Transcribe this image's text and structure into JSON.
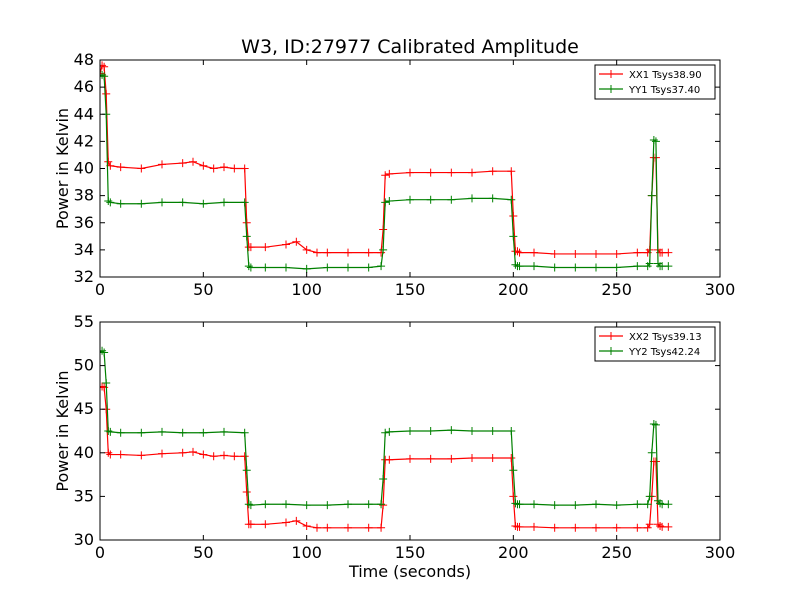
{
  "title": "W3, ID:27977 Calibrated Amplitude",
  "chart_data": [
    {
      "type": "line",
      "title": "W3, ID:27977 Calibrated Amplitude",
      "xlabel": "",
      "ylabel": "Power in Kelvin",
      "xlim": [
        0,
        300
      ],
      "ylim": [
        32,
        48
      ],
      "xticks": [
        "0",
        "50",
        "100",
        "150",
        "200",
        "250",
        "300"
      ],
      "yticks": [
        "32",
        "34",
        "36",
        "38",
        "40",
        "42",
        "44",
        "46",
        "48"
      ],
      "grid": false,
      "legend_position": "top-right",
      "series": [
        {
          "name": "XX1 Tsys38.90",
          "color": "#ff0000",
          "x": [
            0,
            1,
            2,
            3,
            4,
            5,
            10,
            20,
            30,
            40,
            45,
            50,
            55,
            60,
            65,
            70,
            71,
            72,
            73,
            80,
            90,
            95,
            100,
            105,
            110,
            120,
            130,
            136,
            137,
            138,
            140,
            150,
            160,
            170,
            180,
            190,
            199,
            200,
            201,
            202,
            203,
            210,
            220,
            230,
            240,
            250,
            260,
            265,
            266,
            267,
            268,
            269,
            270,
            271,
            272,
            275
          ],
          "y": [
            47.0,
            47.6,
            47.5,
            45.5,
            40.5,
            40.2,
            40.1,
            40.0,
            40.3,
            40.4,
            40.5,
            40.2,
            40.0,
            40.1,
            40.0,
            40.0,
            36.0,
            34.2,
            34.2,
            34.2,
            34.4,
            34.6,
            34.0,
            33.8,
            33.8,
            33.8,
            33.8,
            33.8,
            35.5,
            39.5,
            39.6,
            39.7,
            39.7,
            39.7,
            39.7,
            39.8,
            39.8,
            36.5,
            33.9,
            33.9,
            33.8,
            33.8,
            33.7,
            33.7,
            33.7,
            33.7,
            33.8,
            33.8,
            34.0,
            38.0,
            40.8,
            40.8,
            34.0,
            33.8,
            33.8,
            33.8
          ]
        },
        {
          "name": "YY1 Tsys37.40",
          "color": "#008000",
          "x": [
            0,
            1,
            2,
            3,
            4,
            5,
            10,
            20,
            30,
            40,
            50,
            60,
            70,
            71,
            72,
            73,
            80,
            90,
            100,
            110,
            120,
            130,
            136,
            137,
            138,
            140,
            150,
            160,
            170,
            180,
            190,
            199,
            200,
            201,
            202,
            203,
            210,
            220,
            230,
            240,
            250,
            260,
            265,
            266,
            267,
            268,
            269,
            270,
            271,
            272,
            275
          ],
          "y": [
            46.8,
            46.9,
            46.8,
            44.0,
            37.6,
            37.5,
            37.4,
            37.4,
            37.5,
            37.5,
            37.4,
            37.5,
            37.5,
            35.0,
            32.8,
            32.7,
            32.7,
            32.7,
            32.6,
            32.7,
            32.7,
            32.7,
            32.8,
            34.0,
            37.5,
            37.6,
            37.7,
            37.7,
            37.7,
            37.8,
            37.8,
            37.7,
            35.0,
            32.9,
            32.8,
            32.8,
            32.8,
            32.7,
            32.7,
            32.7,
            32.7,
            32.8,
            32.8,
            33.0,
            38.0,
            42.1,
            42.0,
            33.0,
            32.8,
            32.8,
            32.8
          ]
        }
      ]
    },
    {
      "type": "line",
      "title": "",
      "xlabel": "Time (seconds)",
      "ylabel": "Power in Kelvin",
      "xlim": [
        0,
        300
      ],
      "ylim": [
        30,
        55
      ],
      "xticks": [
        "0",
        "50",
        "100",
        "150",
        "200",
        "250",
        "300"
      ],
      "yticks": [
        "30",
        "35",
        "40",
        "45",
        "50",
        "55"
      ],
      "grid": false,
      "legend_position": "top-right",
      "series": [
        {
          "name": "XX2 Tsys39.13",
          "color": "#ff0000",
          "x": [
            0,
            1,
            2,
            3,
            4,
            5,
            10,
            20,
            30,
            40,
            45,
            50,
            55,
            60,
            65,
            70,
            71,
            72,
            73,
            80,
            90,
            95,
            100,
            105,
            110,
            120,
            130,
            136,
            137,
            138,
            140,
            150,
            160,
            170,
            180,
            190,
            199,
            200,
            201,
            202,
            203,
            210,
            220,
            230,
            240,
            250,
            260,
            265,
            266,
            267,
            268,
            269,
            270,
            271,
            272,
            275
          ],
          "y": [
            47.5,
            47.6,
            47.5,
            45.0,
            40.0,
            39.8,
            39.8,
            39.7,
            39.9,
            40.0,
            40.1,
            39.8,
            39.6,
            39.7,
            39.6,
            39.6,
            35.5,
            31.8,
            31.8,
            31.8,
            32.0,
            32.2,
            31.6,
            31.4,
            31.4,
            31.4,
            31.4,
            31.4,
            34.0,
            39.2,
            39.2,
            39.3,
            39.3,
            39.3,
            39.4,
            39.4,
            39.4,
            35.0,
            31.6,
            31.5,
            31.5,
            31.5,
            31.4,
            31.4,
            31.4,
            31.4,
            31.4,
            31.4,
            31.8,
            35.0,
            39.0,
            39.0,
            31.8,
            31.6,
            31.5,
            31.5
          ]
        },
        {
          "name": "YY2 Tsys42.24",
          "color": "#008000",
          "x": [
            0,
            1,
            2,
            3,
            4,
            5,
            10,
            20,
            30,
            40,
            50,
            60,
            70,
            71,
            72,
            73,
            80,
            90,
            100,
            110,
            120,
            130,
            136,
            137,
            138,
            140,
            150,
            160,
            170,
            180,
            190,
            199,
            200,
            201,
            202,
            203,
            210,
            220,
            230,
            240,
            250,
            260,
            265,
            266,
            267,
            268,
            269,
            270,
            271,
            272,
            275
          ],
          "y": [
            51.6,
            51.7,
            51.5,
            48.0,
            42.5,
            42.4,
            42.3,
            42.3,
            42.4,
            42.3,
            42.3,
            42.4,
            42.3,
            38.0,
            34.1,
            34.0,
            34.1,
            34.1,
            34.0,
            34.0,
            34.1,
            34.1,
            34.1,
            37.0,
            42.3,
            42.4,
            42.5,
            42.5,
            42.6,
            42.5,
            42.5,
            42.5,
            38.0,
            34.2,
            34.1,
            34.1,
            34.1,
            34.0,
            34.0,
            34.1,
            34.0,
            34.1,
            34.1,
            35.0,
            40.0,
            43.3,
            43.2,
            34.5,
            34.2,
            34.1,
            34.1
          ]
        }
      ]
    }
  ]
}
